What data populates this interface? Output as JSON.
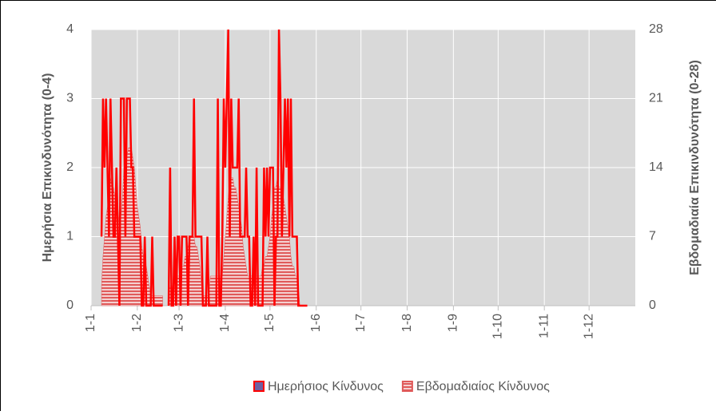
{
  "chart_data": {
    "type": "line",
    "y_label": "Ημερήσια Επικινδυνότητα (0-4)",
    "y2_label": "Εβδομαδιαία Επικινδυνότητα (0-28)",
    "xlim": [
      0,
      365
    ],
    "xticks": [
      {
        "value": 0,
        "label": "1-1"
      },
      {
        "value": 31,
        "label": "1-2"
      },
      {
        "value": 59,
        "label": "1-3"
      },
      {
        "value": 90,
        "label": "1-4"
      },
      {
        "value": 120,
        "label": "1-5"
      },
      {
        "value": 151,
        "label": "1-6"
      },
      {
        "value": 181,
        "label": "1-7"
      },
      {
        "value": 212,
        "label": "1-8"
      },
      {
        "value": 243,
        "label": "1-9"
      },
      {
        "value": 273,
        "label": "1-10"
      },
      {
        "value": 304,
        "label": "1-11"
      },
      {
        "value": 334,
        "label": "1-12"
      }
    ],
    "ylim": [
      0,
      4
    ],
    "yticks": [
      0,
      1,
      2,
      3,
      4
    ],
    "y2lim": [
      0,
      28
    ],
    "y2ticks": [
      0,
      7,
      14,
      21,
      28
    ],
    "grid": true,
    "legend": "bottom",
    "x": [
      7,
      8,
      9,
      10,
      11,
      12,
      13,
      14,
      15,
      16,
      17,
      18,
      19,
      20,
      21,
      22,
      23,
      24,
      25,
      26,
      27,
      28,
      29,
      30,
      31,
      32,
      33,
      34,
      35,
      36,
      37,
      38,
      39,
      40,
      41,
      42,
      43,
      44,
      45,
      46,
      47,
      48,
      49,
      50,
      51,
      52,
      53,
      54,
      55,
      56,
      57,
      58,
      59,
      60,
      61,
      62,
      63,
      64,
      65,
      66,
      67,
      68,
      69,
      70,
      71,
      72,
      73,
      74,
      75,
      76,
      77,
      78,
      79,
      80,
      81,
      82,
      83,
      84,
      85,
      86,
      87,
      88,
      89,
      90,
      91,
      92,
      93,
      94,
      95,
      96,
      97,
      98,
      99,
      100,
      101,
      102,
      103,
      104,
      105,
      106,
      107,
      108,
      109,
      110,
      111,
      112,
      113,
      114,
      115,
      116,
      117,
      118,
      119,
      120,
      121,
      122,
      123,
      124,
      125,
      126,
      127,
      128,
      129,
      130,
      131,
      132,
      133,
      134,
      135,
      136,
      137,
      138,
      139,
      140,
      141,
      142,
      143,
      144,
      145
    ],
    "series": [
      {
        "name": "Ημερήσιος Κίνδυνος",
        "color": "#ff0000",
        "values": [
          1,
          3,
          2,
          3,
          2,
          1,
          3,
          2,
          1,
          1,
          2,
          1,
          0,
          3,
          3,
          3,
          1,
          3,
          3,
          3,
          2,
          2,
          1,
          1,
          1,
          1,
          1,
          0,
          0,
          1,
          0,
          0,
          0,
          0,
          1,
          0,
          0,
          0,
          0,
          0,
          0,
          0,
          null,
          null,
          null,
          0,
          2,
          0,
          0,
          1,
          0,
          1,
          1,
          0,
          1,
          1,
          1,
          1,
          0,
          1,
          1,
          1,
          3,
          1,
          1,
          1,
          1,
          1,
          0,
          0,
          0,
          1,
          0,
          0,
          0,
          0,
          0,
          0,
          3,
          0,
          0,
          1,
          3,
          2,
          3,
          4,
          1,
          3,
          2,
          2,
          2,
          2,
          3,
          1,
          1,
          1,
          1,
          2,
          1,
          1,
          0,
          0,
          1,
          0,
          2,
          0,
          0,
          0,
          0,
          2,
          1,
          2,
          1,
          2,
          2,
          2,
          0,
          1,
          1,
          4,
          3,
          1,
          2,
          3,
          2,
          3,
          1,
          3,
          1,
          1,
          1,
          1,
          0,
          0,
          0,
          0,
          0,
          0,
          0
        ]
      },
      {
        "name": "Εβδομαδιαίος Κίνδυνος",
        "color": "#e05a5a",
        "axis": "y2",
        "values": [
          2,
          5,
          7,
          9,
          10,
          12,
          13,
          12,
          12,
          11,
          11,
          10,
          8,
          9,
          11,
          14,
          14,
          15,
          16,
          16,
          16,
          15,
          14,
          12,
          10,
          9,
          8,
          6,
          5,
          4,
          4,
          3,
          2,
          1,
          1,
          1,
          1,
          1,
          1,
          1,
          1,
          1,
          null,
          null,
          null,
          2,
          2,
          2,
          2,
          2,
          2,
          3,
          3,
          3,
          4,
          4,
          5,
          5,
          6,
          7,
          7,
          7,
          7,
          6,
          6,
          5,
          4,
          2,
          1,
          1,
          1,
          1,
          1,
          3,
          3,
          3,
          3,
          3,
          3,
          3,
          3,
          3,
          5,
          7,
          9,
          11,
          13,
          13,
          13,
          12,
          12,
          11,
          10,
          9,
          8,
          6,
          5,
          4,
          3,
          3,
          3,
          3,
          3,
          3,
          3,
          3,
          3,
          3,
          4,
          4,
          5,
          5,
          6,
          7,
          9,
          10,
          12,
          12,
          13,
          12,
          12,
          12,
          11,
          10,
          9,
          8,
          7,
          5,
          4,
          4,
          3,
          3,
          2,
          0,
          0,
          0,
          0,
          0,
          0
        ]
      }
    ]
  }
}
